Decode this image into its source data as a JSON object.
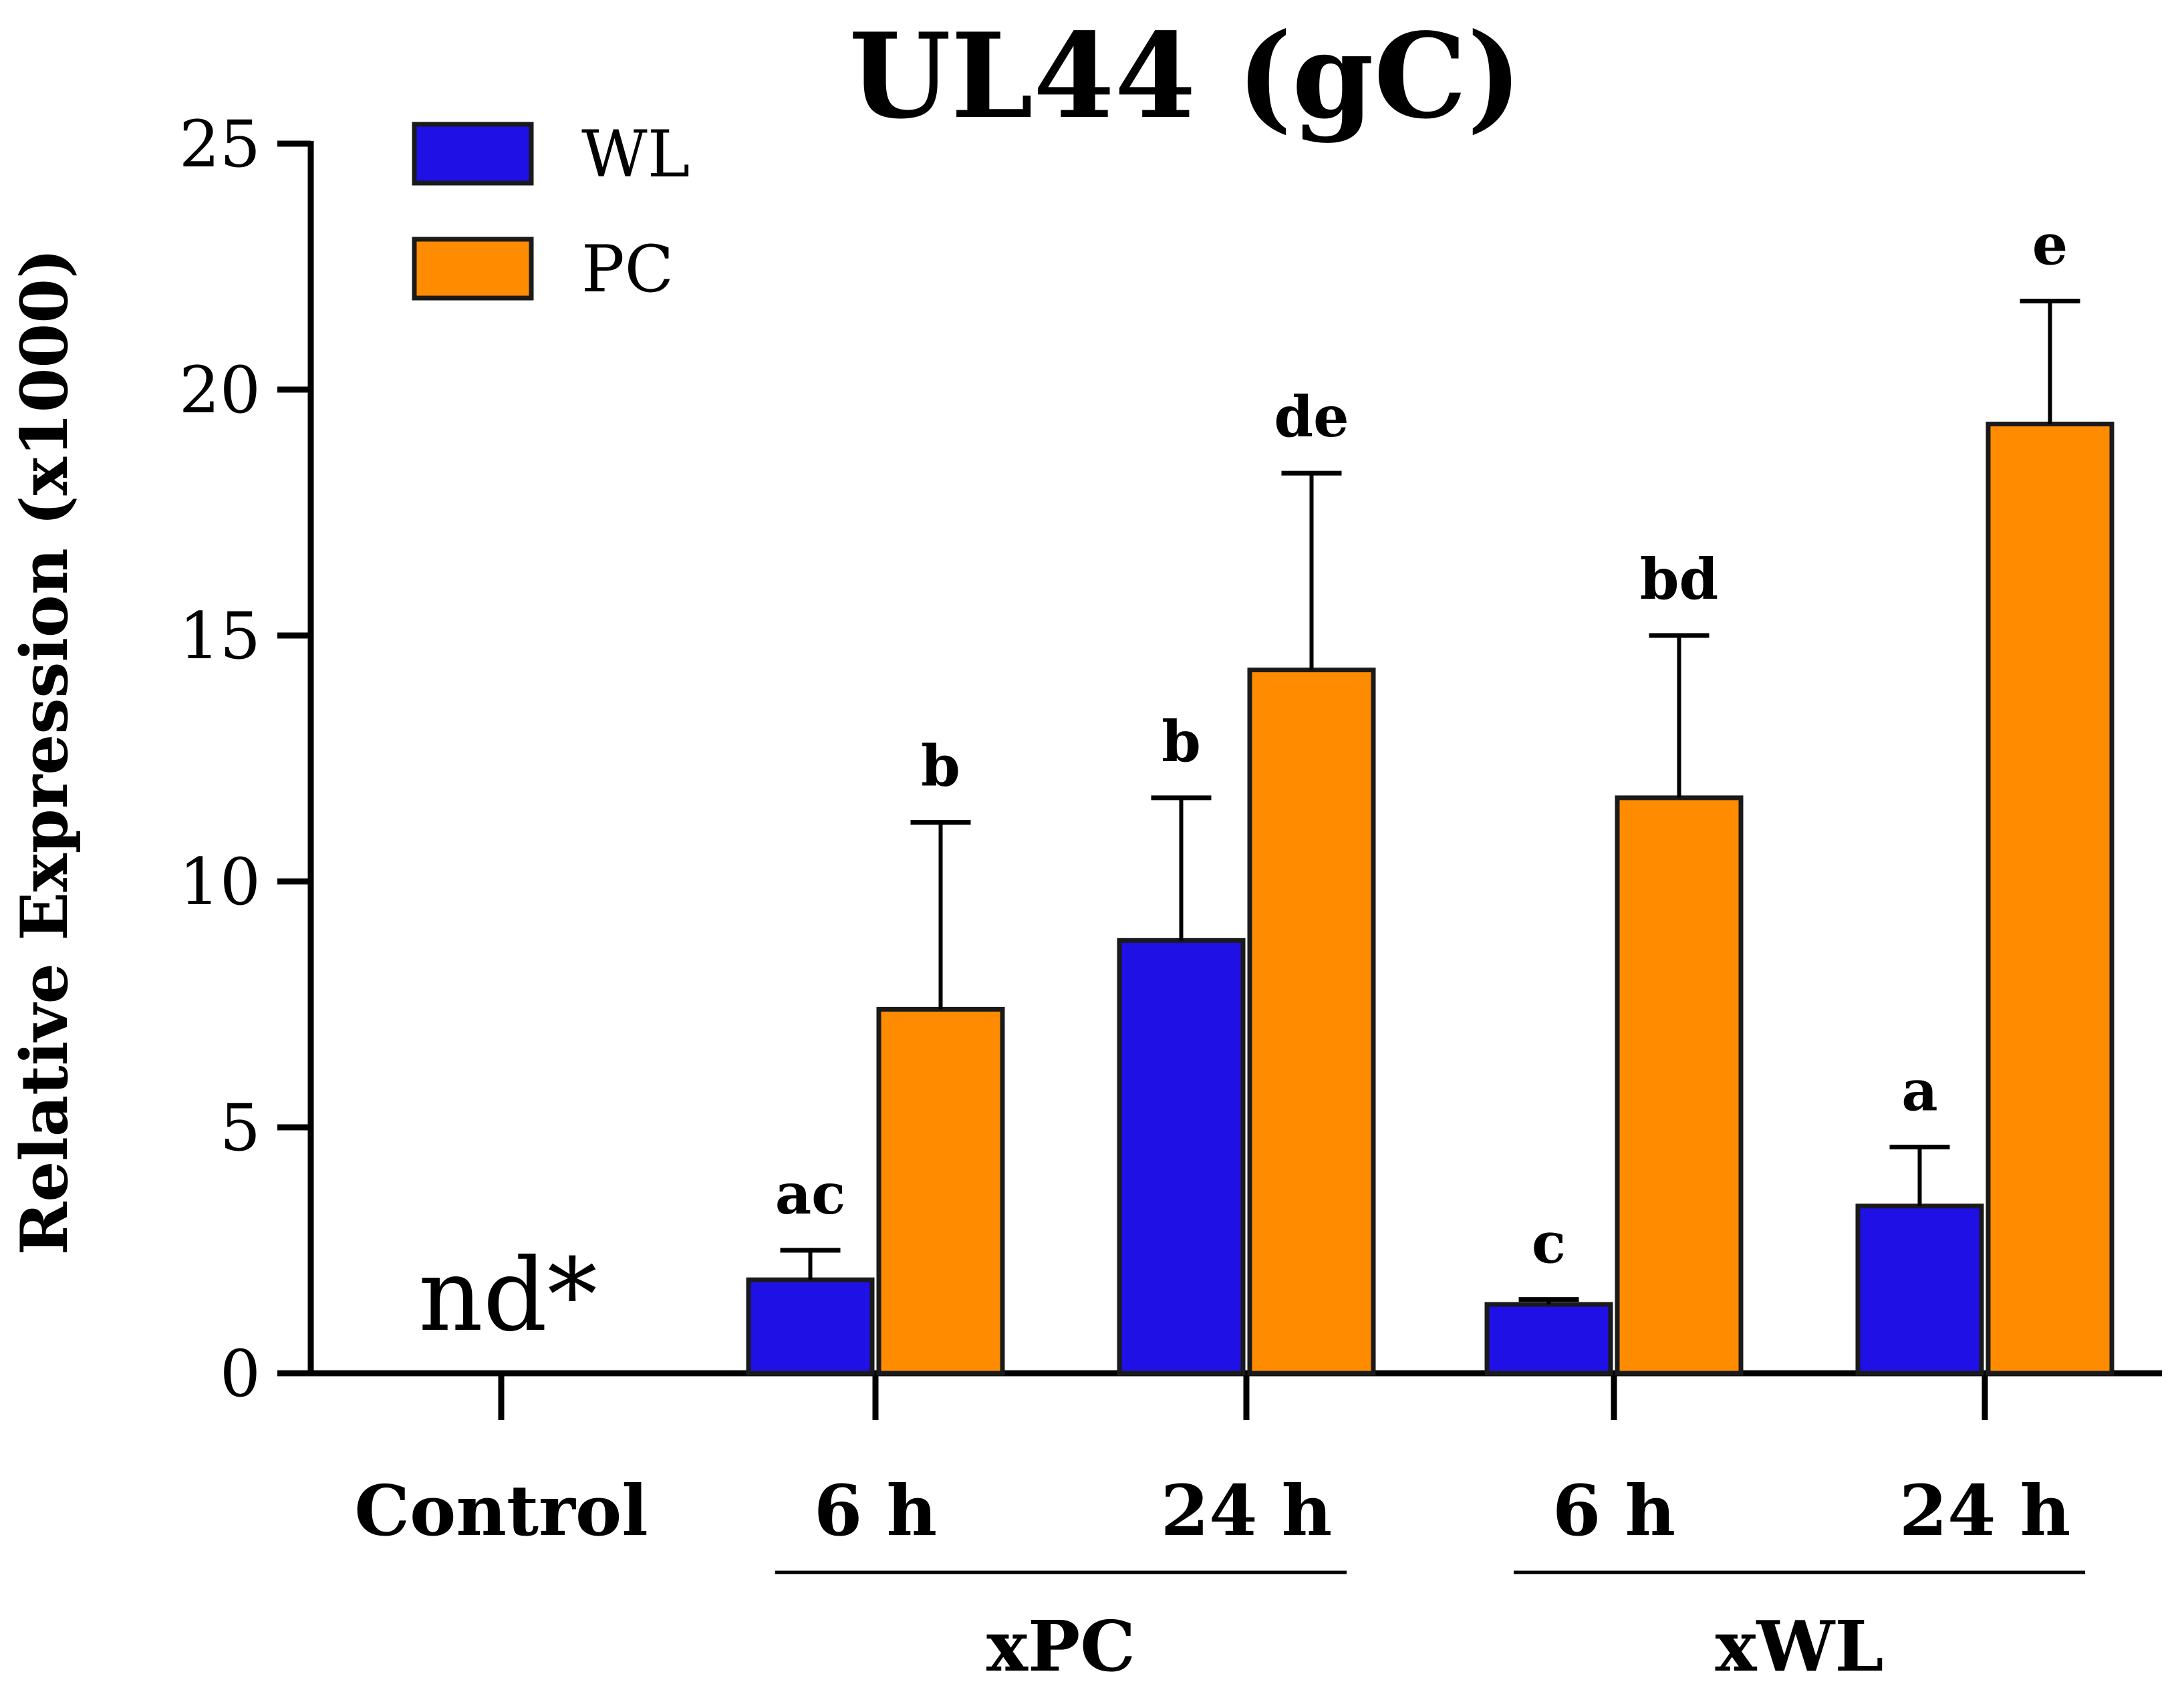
{
  "chart_data": {
    "type": "bar",
    "title": "UL44 (gC)",
    "xlabel": "",
    "ylabel": "Relative Expression (x1000)",
    "ylim": [
      0,
      25
    ],
    "yticks": [
      0,
      5,
      10,
      15,
      20,
      25
    ],
    "categories": [
      "Control",
      "6 h",
      "24 h",
      "6 h",
      "24 h"
    ],
    "groups": [
      {
        "label": "xPC",
        "categories": [
          1,
          2
        ]
      },
      {
        "label": "xWL",
        "categories": [
          3,
          4
        ]
      }
    ],
    "series": [
      {
        "name": "WL",
        "color": "#1f10e6",
        "values": [
          null,
          1.9,
          8.8,
          1.4,
          3.4
        ],
        "errors": [
          null,
          0.6,
          2.9,
          0.1,
          1.2
        ],
        "labels": [
          "",
          "ac",
          "b",
          "c",
          "a"
        ]
      },
      {
        "name": "PC",
        "color": "#ff8c00",
        "values": [
          null,
          7.4,
          14.3,
          11.7,
          19.3
        ],
        "errors": [
          null,
          3.8,
          4.0,
          3.3,
          2.5
        ],
        "labels": [
          "",
          "b",
          "de",
          "bd",
          "e"
        ]
      }
    ],
    "annotations": [
      {
        "category": 0,
        "text": "nd*"
      }
    ],
    "legend": "top-left",
    "grid": false
  }
}
